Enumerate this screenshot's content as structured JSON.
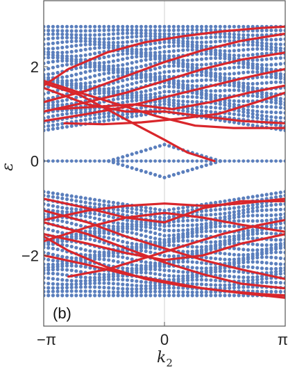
{
  "chart_data": {
    "type": "scatter",
    "panel_label": "(b)",
    "xlabel": "k",
    "xlabel_subscript": "2",
    "ylabel": "ε",
    "xlim": [
      -3.14159,
      3.14159
    ],
    "ylim": [
      -3.5,
      3.4
    ],
    "x_ticks": [
      {
        "value": -3.14159,
        "label": "−π"
      },
      {
        "value": 0,
        "label": "0"
      },
      {
        "value": 3.14159,
        "label": "π"
      }
    ],
    "y_ticks": [
      {
        "value": 2,
        "label": "2"
      },
      {
        "value": 0,
        "label": "0"
      },
      {
        "value": -2,
        "label": "−2"
      }
    ],
    "grid": {
      "x_lines": [
        0
      ],
      "y_lines": [
        0
      ]
    },
    "colors": {
      "bulk": "#5b7fbd",
      "edge": "#d9262b",
      "frame": "#555555",
      "grid": "#cfcfcf"
    },
    "bulk_band_edges": {
      "upper_band_top": 2.85,
      "upper_band_bottom_at_k0": 1.05,
      "upper_band_bottom_at_pi": 0.65,
      "lower_band_top_at_k0": -1.05,
      "lower_band_top_at_pi": -0.65,
      "lower_band_bottom": -2.85,
      "gap_states_at_k0": [
        -0.35,
        0.35
      ]
    },
    "series": [
      {
        "role": "edge",
        "x": [
          -3.14,
          -2.5,
          -1.5,
          -0.5,
          0.5,
          1.5,
          2.5,
          3.14
        ],
        "y": [
          1.6,
          1.95,
          2.3,
          2.52,
          2.65,
          2.75,
          2.82,
          2.85
        ]
      },
      {
        "role": "edge",
        "x": [
          -3.14,
          -2.0,
          -1.0,
          0.0,
          1.0,
          2.0,
          3.14
        ],
        "y": [
          1.25,
          1.5,
          1.8,
          2.1,
          2.35,
          2.55,
          2.7
        ]
      },
      {
        "role": "edge",
        "x": [
          -3.14,
          -2.0,
          -1.0,
          0.0,
          1.0,
          2.0,
          3.14
        ],
        "y": [
          1.05,
          1.25,
          1.45,
          1.7,
          1.95,
          2.15,
          2.3
        ]
      },
      {
        "role": "edge",
        "x": [
          -3.14,
          -2.0,
          -1.0,
          0.0,
          1.0,
          2.0,
          3.14
        ],
        "y": [
          0.85,
          1.0,
          1.15,
          1.35,
          1.55,
          1.75,
          1.95
        ]
      },
      {
        "role": "edge",
        "x": [
          -2.8,
          -1.8,
          -0.8,
          0.2,
          1.2,
          2.2,
          3.14
        ],
        "y": [
          1.1,
          1.15,
          1.2,
          1.1,
          1.25,
          1.45,
          1.6
        ]
      },
      {
        "role": "edge",
        "x": [
          -3.14,
          -2.0,
          -1.0,
          0.0,
          1.0,
          2.0,
          3.14
        ],
        "y": [
          1.55,
          1.2,
          1.05,
          1.05,
          0.95,
          0.85,
          0.8
        ]
      },
      {
        "role": "edge",
        "x": [
          -3.14,
          -2.2,
          -1.2,
          -0.2,
          0.8,
          1.8,
          3.14
        ],
        "y": [
          1.7,
          1.45,
          1.2,
          0.95,
          0.75,
          0.7,
          0.7
        ]
      },
      {
        "role": "edge",
        "x": [
          -2.6,
          -1.6,
          -0.6,
          0.4,
          1.4,
          2.4,
          3.14
        ],
        "y": [
          0.8,
          0.78,
          0.82,
          0.9,
          1.0,
          1.25,
          1.45
        ]
      },
      {
        "role": "edge",
        "x": [
          -3.14,
          -2.2,
          -1.5,
          -0.7,
          0.0,
          0.6,
          1.3
        ],
        "y": [
          1.65,
          1.4,
          1.1,
          0.75,
          0.45,
          0.18,
          0.0
        ]
      },
      {
        "role": "edge",
        "x": [
          -3.14,
          -2.0,
          -1.0,
          0.0,
          1.0,
          2.0,
          3.14
        ],
        "y": [
          -0.8,
          -1.0,
          -1.2,
          -1.3,
          -1.0,
          -0.85,
          -0.85
        ]
      },
      {
        "role": "edge",
        "x": [
          -3.14,
          -2.0,
          -1.0,
          0.0,
          1.0,
          2.0,
          3.14
        ],
        "y": [
          -1.25,
          -1.05,
          -0.95,
          -0.9,
          -0.95,
          -0.9,
          -0.8
        ]
      },
      {
        "role": "edge",
        "x": [
          -3.14,
          -2.0,
          -1.0,
          0.0,
          1.0,
          2.0,
          3.14
        ],
        "y": [
          -1.7,
          -1.4,
          -1.2,
          -1.1,
          -1.2,
          -1.35,
          -1.5
        ]
      },
      {
        "role": "edge",
        "x": [
          -3.14,
          -2.0,
          -1.0,
          0.0,
          1.0,
          2.0,
          3.14
        ],
        "y": [
          -1.55,
          -1.75,
          -1.95,
          -2.1,
          -2.0,
          -1.75,
          -1.55
        ]
      },
      {
        "role": "edge",
        "x": [
          -3.14,
          -2.0,
          -1.0,
          0.0,
          1.0,
          2.0,
          3.14
        ],
        "y": [
          -1.05,
          -1.3,
          -1.6,
          -1.85,
          -2.1,
          -2.3,
          -2.5
        ]
      },
      {
        "role": "edge",
        "x": [
          -3.14,
          -2.0,
          -1.0,
          0.0,
          1.0,
          2.0,
          3.14
        ],
        "y": [
          -1.3,
          -1.55,
          -1.85,
          -2.15,
          -2.4,
          -2.6,
          -2.7
        ]
      },
      {
        "role": "edge",
        "x": [
          -3.14,
          -2.5,
          -1.5,
          -0.5,
          0.5,
          1.5,
          2.5,
          3.14
        ],
        "y": [
          -1.6,
          -1.9,
          -2.25,
          -2.5,
          -2.65,
          -2.75,
          -2.82,
          -2.85
        ]
      },
      {
        "role": "edge",
        "x": [
          -3.14,
          -2.0,
          -1.0,
          0.0,
          1.0,
          2.0,
          3.14
        ],
        "y": [
          -2.0,
          -2.2,
          -2.4,
          -2.55,
          -2.7,
          -2.8,
          -2.9
        ]
      },
      {
        "role": "edge",
        "x": [
          -2.5,
          -1.5,
          -0.5,
          0.5,
          1.5,
          2.5,
          3.14
        ],
        "y": [
          -2.45,
          -2.3,
          -2.05,
          -1.8,
          -1.55,
          -1.35,
          -1.25
        ]
      }
    ]
  }
}
